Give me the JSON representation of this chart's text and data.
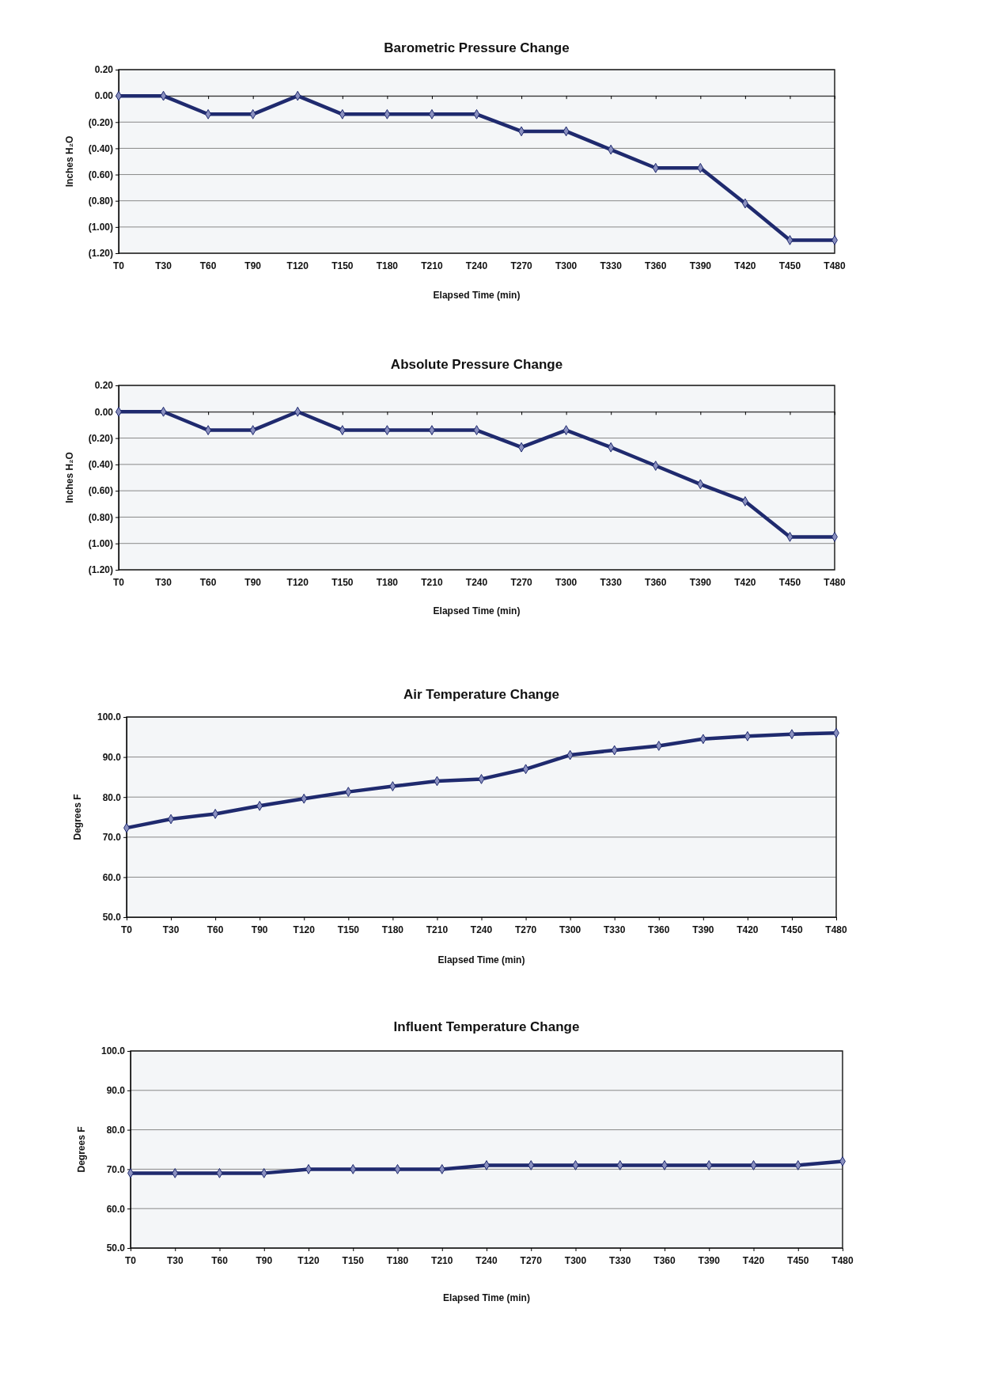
{
  "chart_data": [
    {
      "type": "line",
      "title": "Barometric Pressure Change",
      "xlabel": "Elapsed Time (min)",
      "ylabel": "Inches H₂O",
      "categories": [
        "T0",
        "T30",
        "T60",
        "T90",
        "T120",
        "T150",
        "T180",
        "T210",
        "T240",
        "T270",
        "T300",
        "T330",
        "T360",
        "T390",
        "T420",
        "T450",
        "T480"
      ],
      "series": [
        {
          "color": "#1f2a6e",
          "values": [
            0,
            0,
            -0.14,
            -0.14,
            0,
            -0.14,
            -0.14,
            -0.14,
            -0.14,
            -0.27,
            -0.27,
            -0.41,
            -0.55,
            -0.55,
            -0.82,
            -1.1,
            -1.1
          ]
        }
      ],
      "ylim": [
        -1.2,
        0.2
      ],
      "yticks": [
        {
          "value": 0.2,
          "label": "0.20"
        },
        {
          "value": 0,
          "label": "0.00"
        },
        {
          "value": -0.2,
          "label": "(0.20)"
        },
        {
          "value": -0.4,
          "label": "(0.40)"
        },
        {
          "value": -0.6,
          "label": "(0.60)"
        },
        {
          "value": -0.8,
          "label": "(0.80)"
        },
        {
          "value": -1,
          "label": "(1.00)"
        },
        {
          "value": -1.2,
          "label": "(1.20)"
        }
      ],
      "grid": "y",
      "marker": "diamond",
      "line_style": "solid"
    },
    {
      "type": "line",
      "title": "Absolute Pressure Change",
      "xlabel": "Elapsed Time (min)",
      "ylabel": "Inches H₂O",
      "categories": [
        "T0",
        "T30",
        "T60",
        "T90",
        "T120",
        "T150",
        "T180",
        "T210",
        "T240",
        "T270",
        "T300",
        "T330",
        "T360",
        "T390",
        "T420",
        "T450",
        "T480"
      ],
      "series": [
        {
          "color": "#1f2a6e",
          "values": [
            0,
            0,
            -0.14,
            -0.14,
            0,
            -0.14,
            -0.14,
            -0.14,
            -0.14,
            -0.27,
            -0.14,
            -0.27,
            -0.41,
            -0.55,
            -0.68,
            -0.95,
            -0.95
          ]
        }
      ],
      "ylim": [
        -1.2,
        0.2
      ],
      "yticks": [
        {
          "value": 0.2,
          "label": "0.20"
        },
        {
          "value": 0,
          "label": "0.00"
        },
        {
          "value": -0.2,
          "label": "(0.20)"
        },
        {
          "value": -0.4,
          "label": "(0.40)"
        },
        {
          "value": -0.6,
          "label": "(0.60)"
        },
        {
          "value": -0.8,
          "label": "(0.80)"
        },
        {
          "value": -1,
          "label": "(1.00)"
        },
        {
          "value": -1.2,
          "label": "(1.20)"
        }
      ],
      "grid": "y",
      "marker": "diamond",
      "line_style": "solid"
    },
    {
      "type": "line",
      "title": "Air Temperature Change",
      "xlabel": "Elapsed Time (min)",
      "ylabel": "Degrees F",
      "categories": [
        "T0",
        "T30",
        "T60",
        "T90",
        "T120",
        "T150",
        "T180",
        "T210",
        "T240",
        "T270",
        "T300",
        "T330",
        "T360",
        "T390",
        "T420",
        "T450",
        "T480"
      ],
      "series": [
        {
          "color": "#1f2a6e",
          "values": [
            72.3,
            74.5,
            75.8,
            77.8,
            79.6,
            81.3,
            82.7,
            84.0,
            84.5,
            87.0,
            90.5,
            91.7,
            92.8,
            94.5,
            95.2,
            95.7,
            96.0
          ]
        }
      ],
      "ylim": [
        50,
        100
      ],
      "yticks": [
        {
          "value": 50,
          "label": "50.0"
        },
        {
          "value": 60,
          "label": "60.0"
        },
        {
          "value": 70,
          "label": "70.0"
        },
        {
          "value": 80,
          "label": "80.0"
        },
        {
          "value": 90,
          "label": "90.0"
        },
        {
          "value": 100,
          "label": "100.0"
        }
      ],
      "grid": "y",
      "marker": "diamond",
      "line_style": "solid"
    },
    {
      "type": "line",
      "title": "Influent Temperature Change",
      "xlabel": "Elapsed Time (min)",
      "ylabel": "Degrees F",
      "categories": [
        "T0",
        "T30",
        "T60",
        "T90",
        "T120",
        "T150",
        "T180",
        "T210",
        "T240",
        "T270",
        "T300",
        "T330",
        "T360",
        "T390",
        "T420",
        "T450",
        "T480"
      ],
      "series": [
        {
          "color": "#1f2a6e",
          "values": [
            69,
            69,
            69,
            69,
            70,
            70,
            70,
            70,
            71,
            71,
            71,
            71,
            71,
            71,
            71,
            71,
            72
          ]
        }
      ],
      "ylim": [
        50,
        100
      ],
      "yticks": [
        {
          "value": 50,
          "label": "50.0"
        },
        {
          "value": 60,
          "label": "60.0"
        },
        {
          "value": 70,
          "label": "70.0"
        },
        {
          "value": 80,
          "label": "80.0"
        },
        {
          "value": 90,
          "label": "90.0"
        },
        {
          "value": 100,
          "label": "100.0"
        }
      ],
      "grid": "y",
      "marker": "diamond",
      "line_style": "solid"
    }
  ]
}
